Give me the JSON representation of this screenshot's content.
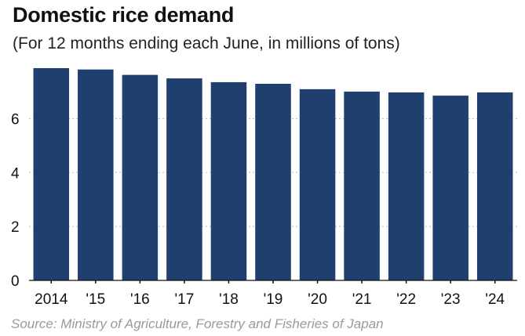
{
  "header": {
    "title": "Domestic rice demand",
    "subtitle": "(For 12 months ending each June, in millions of tons)"
  },
  "footer": {
    "source": "Source: Ministry of Agriculture, Forestry and Fisheries of Japan"
  },
  "chart_data": {
    "type": "bar",
    "title": "Domestic rice demand",
    "subtitle": "(For 12 months ending each June, in millions of tons)",
    "xlabel": "",
    "ylabel": "",
    "categories": [
      "2014",
      "'15",
      "'16",
      "'17",
      "'18",
      "'19",
      "'20",
      "'21",
      "'22",
      "'23",
      "'24"
    ],
    "values": [
      7.87,
      7.82,
      7.62,
      7.49,
      7.35,
      7.29,
      7.09,
      7.0,
      6.97,
      6.85,
      6.97
    ],
    "ylim": [
      0,
      7.87
    ],
    "yticks": [
      0,
      2,
      4,
      6
    ],
    "grid": true,
    "legend": "none",
    "colors": {
      "bar": "#1f3f6e",
      "grid": "#b8b8b8",
      "axis": "#111111"
    }
  }
}
